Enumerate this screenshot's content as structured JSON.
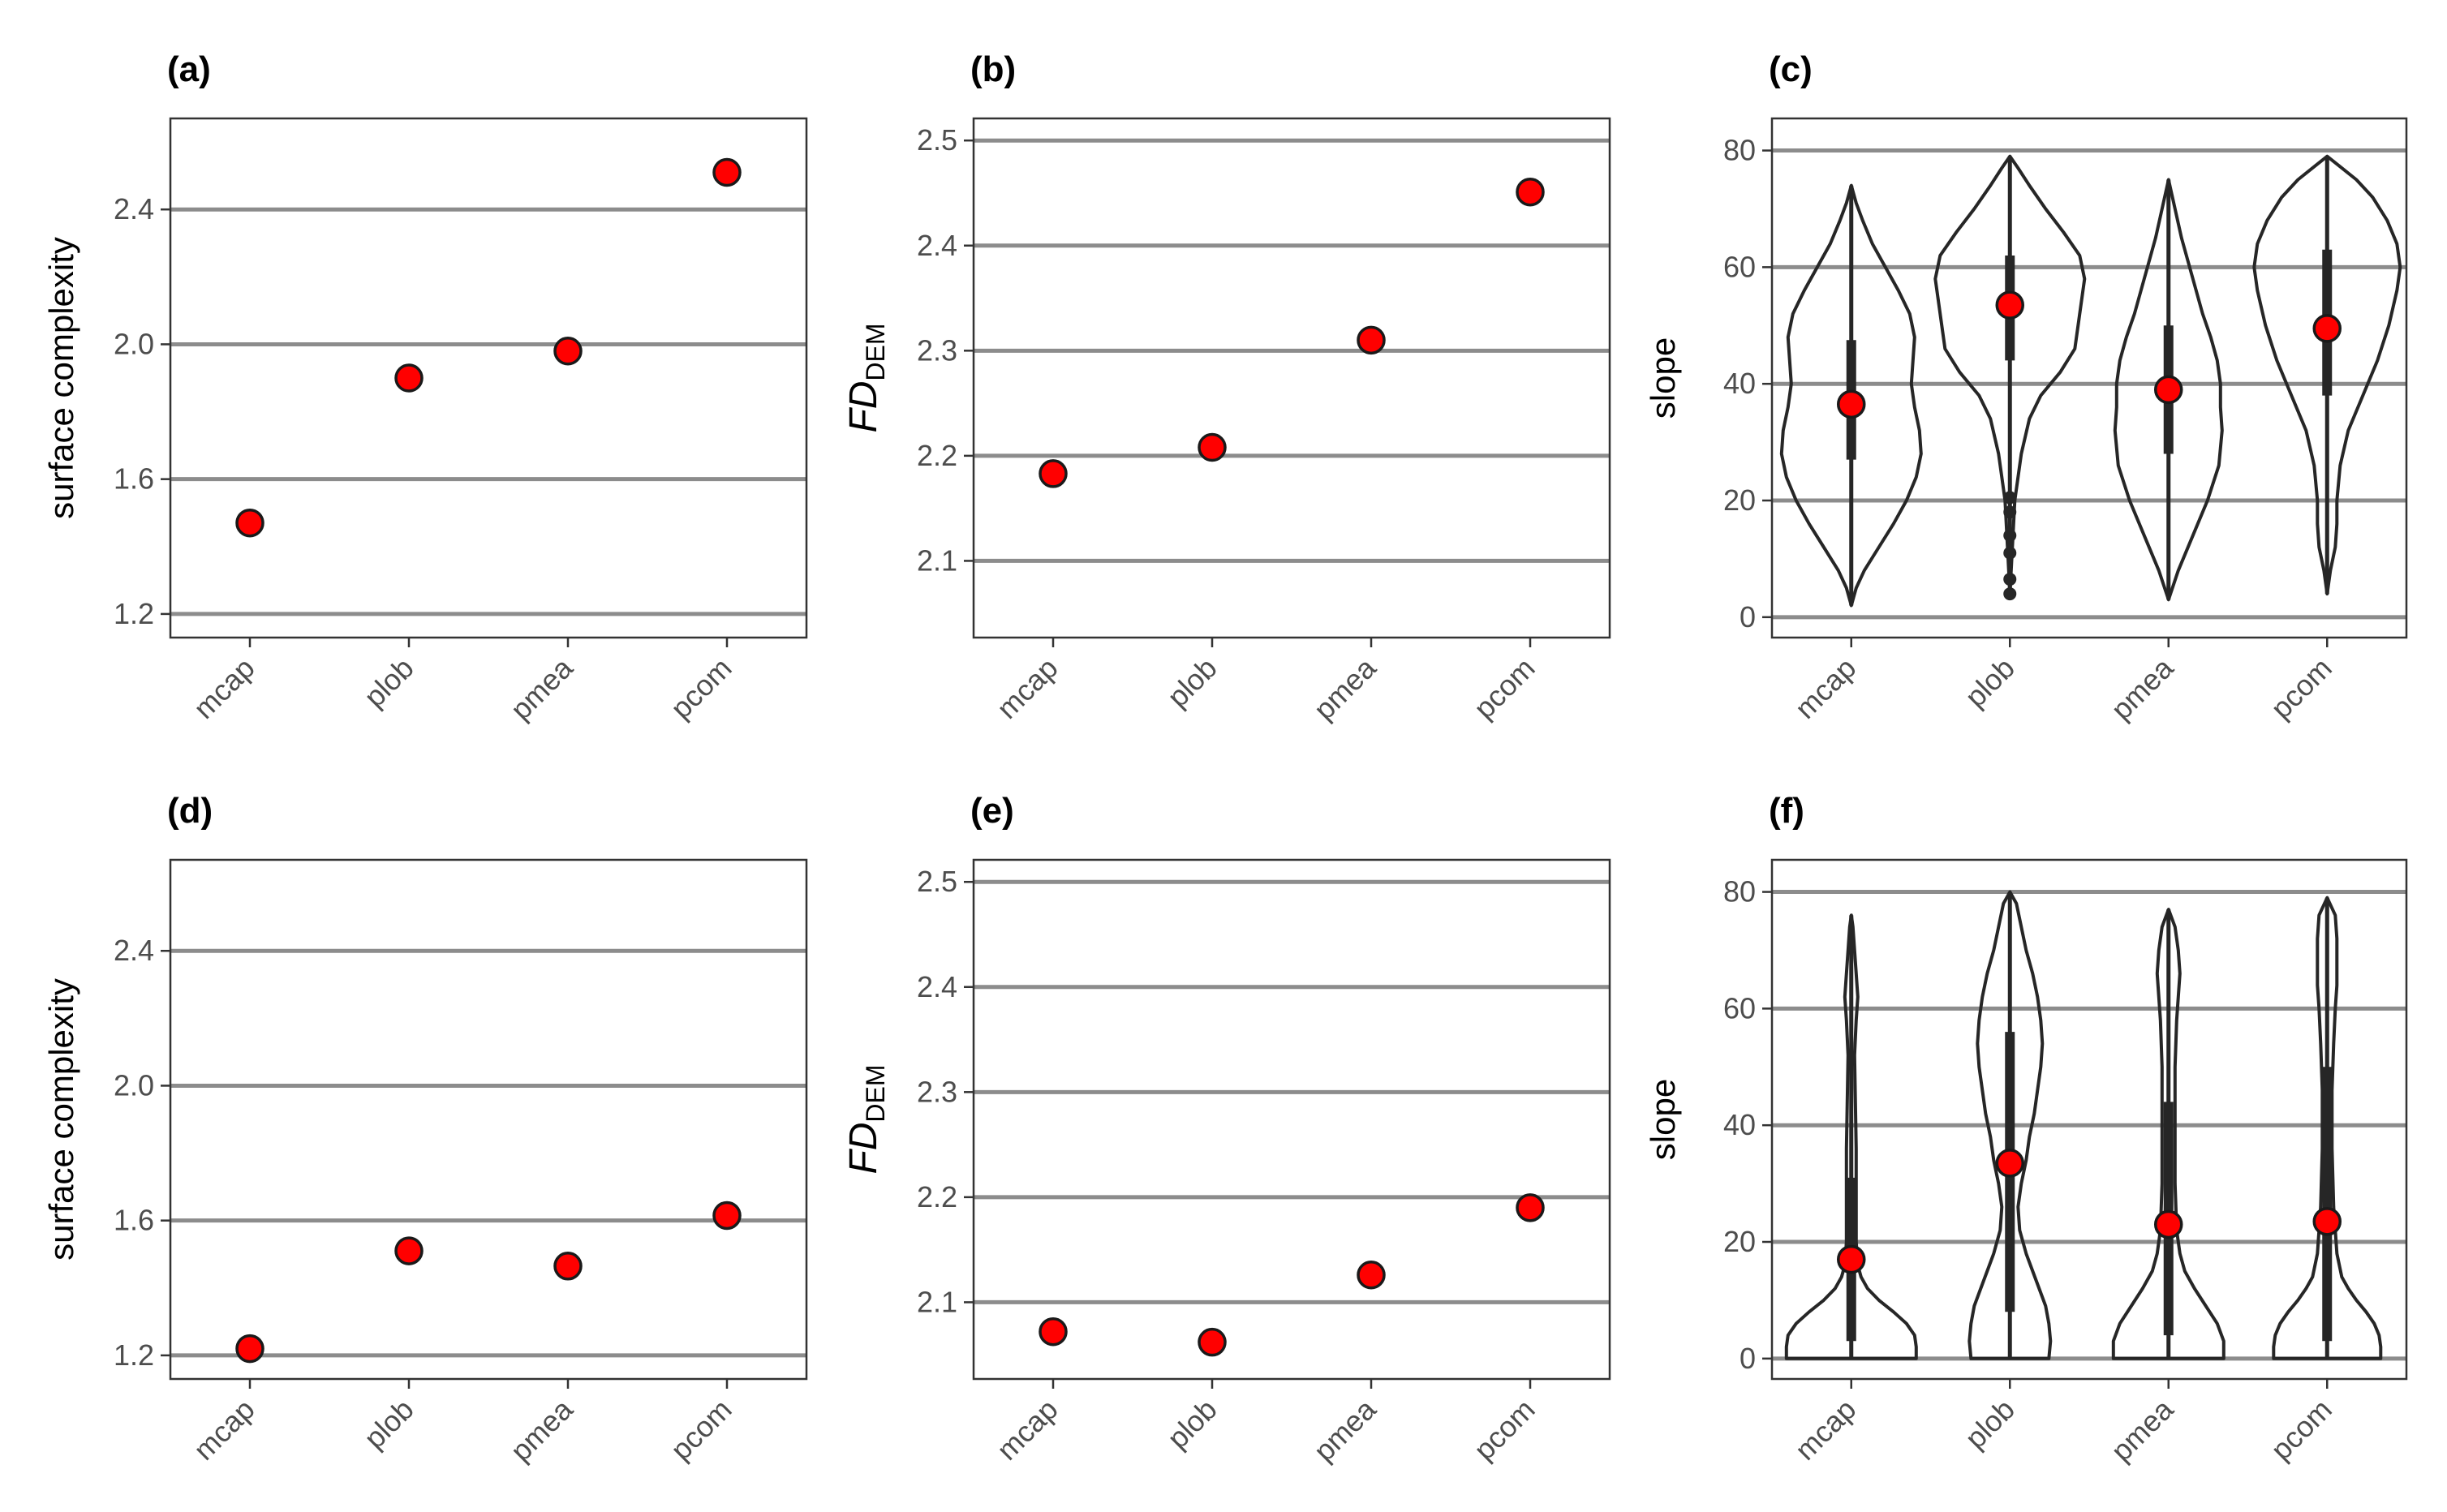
{
  "figure": {
    "colors": {
      "point_fill": "#ff0000",
      "point_stroke": "#1a1a1a",
      "gridline": "#8c8c8c",
      "panel_border": "#333333",
      "violin_stroke": "#262626",
      "text": "#4d4d4d"
    }
  },
  "chart_data": [
    {
      "id": "a",
      "tag": "(a)",
      "type": "scatter",
      "categories": [
        "mcap",
        "plob",
        "pmea",
        "pcom"
      ],
      "values": [
        1.47,
        1.9,
        1.98,
        2.51
      ],
      "ylabel": "surface complexity",
      "ylim": [
        1.13,
        2.67
      ],
      "yticks": [
        1.2,
        1.6,
        2.0,
        2.4
      ],
      "ytick_labels": [
        "1.2",
        "1.6",
        "2.0",
        "2.4"
      ]
    },
    {
      "id": "b",
      "tag": "(b)",
      "type": "scatter",
      "categories": [
        "mcap",
        "plob",
        "pmea",
        "pcom"
      ],
      "values": [
        2.183,
        2.208,
        2.31,
        2.451
      ],
      "ylabel": "FD",
      "ylabel_sub": "DEM",
      "ylim": [
        2.027,
        2.521
      ],
      "yticks": [
        2.1,
        2.2,
        2.3,
        2.4,
        2.5
      ],
      "ytick_labels": [
        "2.1",
        "2.2",
        "2.3",
        "2.4",
        "2.5"
      ]
    },
    {
      "id": "c",
      "tag": "(c)",
      "type": "violin",
      "categories": [
        "mcap",
        "plob",
        "pmea",
        "pcom"
      ],
      "medians": [
        36.5,
        53.5,
        39,
        49.5
      ],
      "ranges": [
        [
          2,
          74
        ],
        [
          4,
          79
        ],
        [
          3,
          75
        ],
        [
          4,
          79
        ]
      ],
      "iqr": [
        [
          27,
          47.5
        ],
        [
          44,
          62
        ],
        [
          28,
          50
        ],
        [
          38,
          63
        ]
      ],
      "outliers": [
        [],
        [
          4,
          6.5,
          11,
          14,
          18,
          20.5
        ],
        [],
        []
      ],
      "ylabel": "slope",
      "ylim": [
        -3.5,
        85.5
      ],
      "yticks": [
        0,
        20,
        40,
        60,
        80
      ],
      "ytick_labels": [
        "0",
        "20",
        "40",
        "60",
        "80"
      ]
    },
    {
      "id": "d",
      "tag": "(d)",
      "type": "scatter",
      "categories": [
        "mcap",
        "plob",
        "pmea",
        "pcom"
      ],
      "values": [
        1.22,
        1.51,
        1.465,
        1.615
      ],
      "ylabel": "surface complexity",
      "ylim": [
        1.13,
        2.67
      ],
      "yticks": [
        1.2,
        1.6,
        2.0,
        2.4
      ],
      "ytick_labels": [
        "1.2",
        "1.6",
        "2.0",
        "2.4"
      ]
    },
    {
      "id": "e",
      "tag": "(e)",
      "type": "scatter",
      "categories": [
        "mcap",
        "plob",
        "pmea",
        "pcom"
      ],
      "values": [
        2.072,
        2.062,
        2.126,
        2.19
      ],
      "ylabel": "FD",
      "ylabel_sub": "DEM",
      "ylim": [
        2.027,
        2.521
      ],
      "yticks": [
        2.1,
        2.2,
        2.3,
        2.4,
        2.5
      ],
      "ytick_labels": [
        "2.1",
        "2.2",
        "2.3",
        "2.4",
        "2.5"
      ]
    },
    {
      "id": "f",
      "tag": "(f)",
      "type": "violin",
      "categories": [
        "mcap",
        "plob",
        "pmea",
        "pcom"
      ],
      "medians": [
        17,
        33.5,
        23,
        23.5
      ],
      "ranges": [
        [
          0,
          76
        ],
        [
          0,
          80
        ],
        [
          0,
          77
        ],
        [
          0,
          79
        ]
      ],
      "iqr": [
        [
          3,
          31
        ],
        [
          8,
          56
        ],
        [
          4,
          44
        ],
        [
          3,
          50
        ]
      ],
      "outliers": [
        [],
        [],
        [],
        []
      ],
      "ylabel": "slope",
      "ylim": [
        -3.5,
        85.5
      ],
      "yticks": [
        0,
        20,
        40,
        60,
        80
      ],
      "ytick_labels": [
        "0",
        "20",
        "40",
        "60",
        "80"
      ]
    }
  ]
}
